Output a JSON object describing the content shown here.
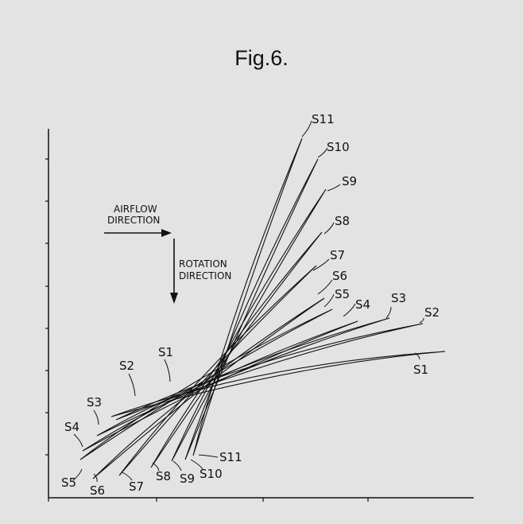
{
  "figure": {
    "title": "Fig.6."
  },
  "annotations": {
    "airflow": [
      "AIRFLOW",
      "DIRECTION"
    ],
    "rotation": [
      "ROTATION",
      "DIRECTION"
    ]
  },
  "sections": [
    {
      "id": "s1",
      "label_top": "S1",
      "label_bottom": "S1"
    },
    {
      "id": "s2",
      "label_top": "S2",
      "label_bottom": "S2"
    },
    {
      "id": "s3",
      "label_top": "S3",
      "label_bottom": "S3"
    },
    {
      "id": "s4",
      "label_top": "S4",
      "label_bottom": "S4"
    },
    {
      "id": "s5",
      "label_top": "S5",
      "label_bottom": "S5"
    },
    {
      "id": "s6",
      "label_top": "S6",
      "label_bottom": "S6"
    },
    {
      "id": "s7",
      "label_top": "S7",
      "label_bottom": "S7"
    },
    {
      "id": "s8",
      "label_top": "S8",
      "label_bottom": "S8"
    },
    {
      "id": "s9",
      "label_top": "S9",
      "label_bottom": "S9"
    },
    {
      "id": "s10",
      "label_top": "S10",
      "label_bottom": "S10"
    },
    {
      "id": "s11",
      "label_top": "S11",
      "label_bottom": "S11"
    }
  ],
  "colors": {
    "ink": "#111111",
    "background": "#e3e3e3"
  }
}
